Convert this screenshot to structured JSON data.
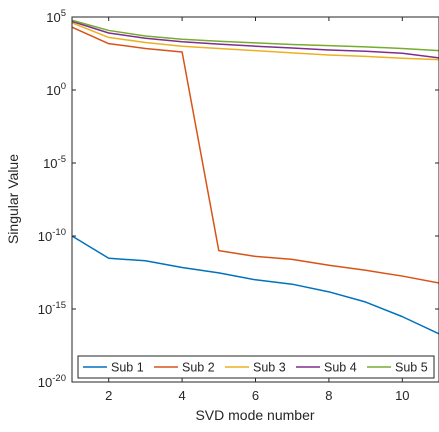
{
  "chart_data": {
    "type": "line",
    "title": "",
    "xlabel": "SVD mode number",
    "ylabel": "Singular Value",
    "xlim": [
      1,
      11
    ],
    "ylim": [
      1e-20,
      100000.0
    ],
    "yscale": "log",
    "grid": false,
    "legend_position": "bottom",
    "x_ticks": [
      2,
      4,
      6,
      8,
      10
    ],
    "x_tick_labels": [
      "2",
      "4",
      "6",
      "8",
      "10"
    ],
    "y_ticks": [
      100000.0,
      1,
      1e-05,
      1e-10,
      1e-15,
      1e-20
    ],
    "y_tick_labels": [
      {
        "base": "10",
        "exp": "5"
      },
      {
        "base": "10",
        "exp": "0"
      },
      {
        "base": "10",
        "exp": "-5"
      },
      {
        "base": "10",
        "exp": "-10"
      },
      {
        "base": "10",
        "exp": "-15"
      },
      {
        "base": "10",
        "exp": "-20"
      }
    ],
    "x": [
      1,
      2,
      3,
      4,
      5,
      6,
      7,
      8,
      9,
      10,
      11
    ],
    "series": [
      {
        "name": "Sub 1",
        "color": "#0072BD",
        "values": [
          1e-10,
          3e-12,
          2e-12,
          7e-13,
          3e-13,
          1e-13,
          5e-14,
          1.5e-14,
          3e-15,
          3e-16,
          2e-17
        ]
      },
      {
        "name": "Sub 2",
        "color": "#D95319",
        "values": [
          20000,
          1500,
          700,
          400,
          1e-11,
          4e-12,
          2.5e-12,
          1e-12,
          4.5e-13,
          1.8e-13,
          6e-14
        ]
      },
      {
        "name": "Sub 3",
        "color": "#EDB120",
        "values": [
          40000,
          4000,
          1800,
          1000,
          700,
          500,
          350,
          250,
          200,
          150,
          120
        ]
      },
      {
        "name": "Sub 4",
        "color": "#7E2F8E",
        "values": [
          50000,
          8000,
          3500,
          2000,
          1400,
          1000,
          750,
          550,
          450,
          330,
          160
        ]
      },
      {
        "name": "Sub 5",
        "color": "#77AC30",
        "values": [
          60000,
          12000,
          5000,
          3000,
          2200,
          1700,
          1300,
          1100,
          900,
          700,
          500
        ]
      }
    ]
  }
}
